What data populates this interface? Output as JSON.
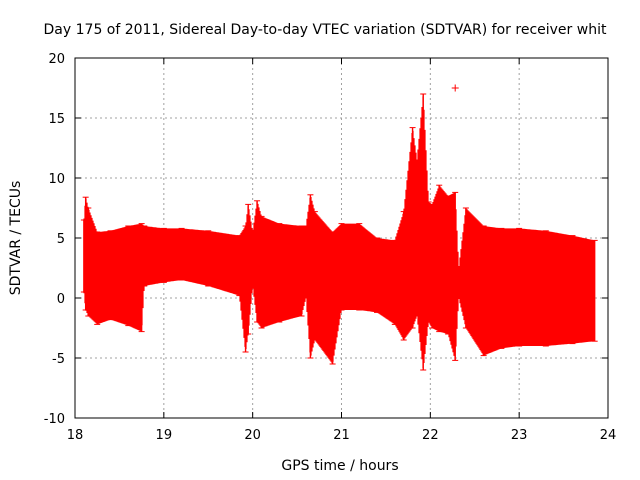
{
  "chart_data": {
    "type": "line",
    "title": "Day 175 of 2011, Sidereal Day-to-day VTEC variation (SDTVAR) for receiver whit",
    "xlabel": "GPS time / hours",
    "ylabel": "SDTVAR / TECUs",
    "xlim": [
      18,
      24
    ],
    "ylim": [
      -10,
      20
    ],
    "x_ticks": [
      "18",
      "19",
      "20",
      "21",
      "22",
      "23",
      "24"
    ],
    "y_ticks": [
      "-10",
      "-5",
      "0",
      "5",
      "10",
      "15",
      "20"
    ],
    "grid": true,
    "series": [
      {
        "name": "SDTVAR",
        "color": "#ff0000",
        "envelope": [
          {
            "x": 18.1,
            "low": 0.5,
            "high": 6.5
          },
          {
            "x": 18.12,
            "low": -1.0,
            "high": 8.4
          },
          {
            "x": 18.15,
            "low": -1.5,
            "high": 7.5
          },
          {
            "x": 18.25,
            "low": -2.2,
            "high": 5.5
          },
          {
            "x": 18.4,
            "low": -1.8,
            "high": 5.6
          },
          {
            "x": 18.6,
            "low": -2.3,
            "high": 6.0
          },
          {
            "x": 18.75,
            "low": -2.8,
            "high": 6.2
          },
          {
            "x": 18.78,
            "low": 1.0,
            "high": 6.0
          },
          {
            "x": 19.0,
            "low": 1.3,
            "high": 5.8
          },
          {
            "x": 19.2,
            "low": 1.5,
            "high": 5.8
          },
          {
            "x": 19.5,
            "low": 1.0,
            "high": 5.6
          },
          {
            "x": 19.85,
            "low": 0.2,
            "high": 5.2
          },
          {
            "x": 19.92,
            "low": -4.5,
            "high": 6.0
          },
          {
            "x": 19.95,
            "low": -3.0,
            "high": 7.8
          },
          {
            "x": 20.0,
            "low": 1.0,
            "high": 5.5
          },
          {
            "x": 20.05,
            "low": -2.0,
            "high": 8.1
          },
          {
            "x": 20.1,
            "low": -2.5,
            "high": 6.8
          },
          {
            "x": 20.3,
            "low": -2.0,
            "high": 6.2
          },
          {
            "x": 20.55,
            "low": -1.5,
            "high": 6.0
          },
          {
            "x": 20.6,
            "low": 0.0,
            "high": 6.0
          },
          {
            "x": 20.65,
            "low": -5.0,
            "high": 8.6
          },
          {
            "x": 20.7,
            "low": -3.5,
            "high": 7.2
          },
          {
            "x": 20.9,
            "low": -5.5,
            "high": 5.5
          },
          {
            "x": 21.0,
            "low": -1.0,
            "high": 6.2
          },
          {
            "x": 21.2,
            "low": -1.0,
            "high": 6.2
          },
          {
            "x": 21.4,
            "low": -1.2,
            "high": 5.0
          },
          {
            "x": 21.6,
            "low": -2.2,
            "high": 4.8
          },
          {
            "x": 21.7,
            "low": -3.5,
            "high": 7.2
          },
          {
            "x": 21.8,
            "low": -2.5,
            "high": 14.2
          },
          {
            "x": 21.85,
            "low": -1.5,
            "high": 11.5
          },
          {
            "x": 21.92,
            "low": -6.0,
            "high": 17.0
          },
          {
            "x": 21.98,
            "low": -2.0,
            "high": 8.0
          },
          {
            "x": 22.02,
            "low": -2.5,
            "high": 7.8
          },
          {
            "x": 22.1,
            "low": -2.8,
            "high": 9.4
          },
          {
            "x": 22.2,
            "low": -3.0,
            "high": 8.5
          },
          {
            "x": 22.28,
            "low": -5.2,
            "high": 8.8
          },
          {
            "x": 22.32,
            "low": 0.0,
            "high": 2.5
          },
          {
            "x": 22.4,
            "low": -2.5,
            "high": 7.5
          },
          {
            "x": 22.6,
            "low": -4.8,
            "high": 6.0
          },
          {
            "x": 22.8,
            "low": -4.2,
            "high": 5.8
          },
          {
            "x": 23.0,
            "low": -4.0,
            "high": 5.8
          },
          {
            "x": 23.3,
            "low": -4.0,
            "high": 5.6
          },
          {
            "x": 23.6,
            "low": -3.8,
            "high": 5.2
          },
          {
            "x": 23.85,
            "low": -3.6,
            "high": 4.8
          }
        ],
        "outliers": [
          {
            "x": 22.28,
            "y": 17.5
          }
        ]
      }
    ]
  }
}
